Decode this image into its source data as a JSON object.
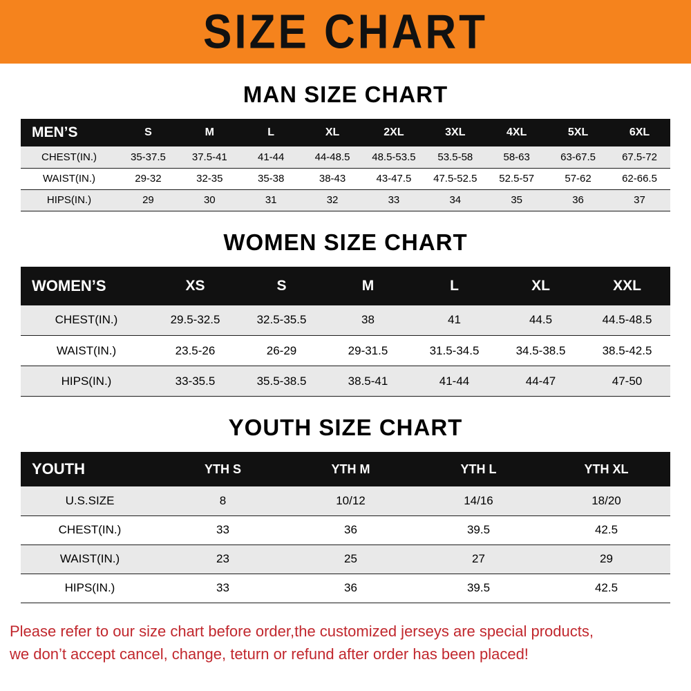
{
  "banner": {
    "title": "SIZE CHART"
  },
  "colors": {
    "banner_bg": "#f5831d",
    "banner_text": "#111111",
    "header_bg": "#111111",
    "row_shade": "#e9e9e9",
    "footer_red": "#c1272d"
  },
  "footer": {
    "line1": "Please refer to our size chart before order,the customized jerseys are special products,",
    "line2": "we don’t accept cancel, change, teturn or refund after order has been placed!"
  },
  "chart_data": [
    {
      "type": "table",
      "title": "MAN SIZE CHART",
      "header_label": "MEN’S",
      "columns": [
        "S",
        "M",
        "L",
        "XL",
        "2XL",
        "3XL",
        "4XL",
        "5XL",
        "6XL"
      ],
      "rows": [
        {
          "label": "CHEST(IN.)",
          "values": [
            "35-37.5",
            "37.5-41",
            "41-44",
            "44-48.5",
            "48.5-53.5",
            "53.5-58",
            "58-63",
            "63-67.5",
            "67.5-72"
          ]
        },
        {
          "label": "WAIST(IN.)",
          "values": [
            "29-32",
            "32-35",
            "35-38",
            "38-43",
            "43-47.5",
            "47.5-52.5",
            "52.5-57",
            "57-62",
            "62-66.5"
          ]
        },
        {
          "label": "HIPS(IN.)",
          "values": [
            "29",
            "30",
            "31",
            "32",
            "33",
            "34",
            "35",
            "36",
            "37"
          ]
        }
      ]
    },
    {
      "type": "table",
      "title": "WOMEN SIZE CHART",
      "header_label": "WOMEN’S",
      "columns": [
        "XS",
        "S",
        "M",
        "L",
        "XL",
        "XXL"
      ],
      "rows": [
        {
          "label": "CHEST(IN.)",
          "values": [
            "29.5-32.5",
            "32.5-35.5",
            "38",
            "41",
            "44.5",
            "44.5-48.5"
          ]
        },
        {
          "label": "WAIST(IN.)",
          "values": [
            "23.5-26",
            "26-29",
            "29-31.5",
            "31.5-34.5",
            "34.5-38.5",
            "38.5-42.5"
          ]
        },
        {
          "label": "HIPS(IN.)",
          "values": [
            "33-35.5",
            "35.5-38.5",
            "38.5-41",
            "41-44",
            "44-47",
            "47-50"
          ]
        }
      ]
    },
    {
      "type": "table",
      "title": "YOUTH SIZE CHART",
      "header_label": "YOUTH",
      "columns": [
        "YTH S",
        "YTH M",
        "YTH L",
        "YTH XL"
      ],
      "rows": [
        {
          "label": "U.S.SIZE",
          "values": [
            "8",
            "10/12",
            "14/16",
            "18/20"
          ]
        },
        {
          "label": "CHEST(IN.)",
          "values": [
            "33",
            "36",
            "39.5",
            "42.5"
          ]
        },
        {
          "label": "WAIST(IN.)",
          "values": [
            "23",
            "25",
            "27",
            "29"
          ]
        },
        {
          "label": "HIPS(IN.)",
          "values": [
            "33",
            "36",
            "39.5",
            "42.5"
          ]
        }
      ]
    }
  ]
}
